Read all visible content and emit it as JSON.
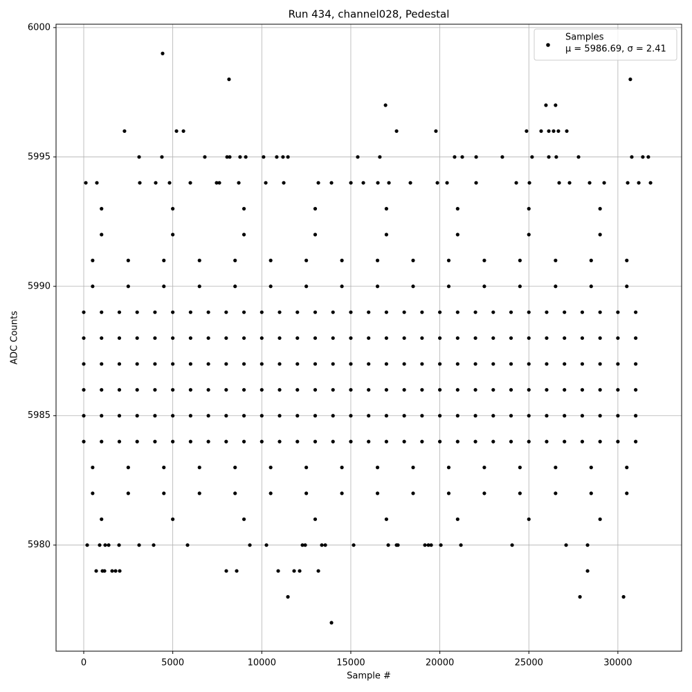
{
  "chart_data": {
    "type": "scatter",
    "title": "Run 434, channel028, Pedestal",
    "x_label": "Sample #",
    "y_label": "ADC Counts",
    "xlim": [
      -1555,
      33580
    ],
    "ylim": [
      5975.9,
      6000.13
    ],
    "xticks": [
      0,
      5000,
      10000,
      15000,
      20000,
      25000,
      30000
    ],
    "yticks": [
      5980,
      5985,
      5990,
      5995,
      6000
    ],
    "grid": true,
    "legend_position": "upper right",
    "legend_note": "μ = 5986.69, σ = 2.41",
    "series": [
      {
        "name": "Samples",
        "color": "#000000",
        "x": [
          0,
          1000,
          2000,
          3000,
          4000,
          5000,
          6000,
          7000,
          8000,
          9000,
          10000,
          11000,
          12000,
          13000,
          14000,
          15000,
          16000,
          17000,
          18000,
          19000,
          20000,
          21000,
          22000,
          23000,
          24000,
          25000,
          26000,
          27000,
          28000,
          29000,
          30000,
          31000,
          0,
          1000,
          2000,
          3000,
          4000,
          5000,
          6000,
          7000,
          8000,
          9000,
          10000,
          11000,
          12000,
          13000,
          14000,
          15000,
          16000,
          17000,
          18000,
          19000,
          20000,
          21000,
          22000,
          23000,
          24000,
          25000,
          26000,
          27000,
          28000,
          29000,
          30000,
          31000,
          0,
          1000,
          2000,
          3000,
          4000,
          5000,
          6000,
          7000,
          8000,
          9000,
          10000,
          11000,
          12000,
          13000,
          14000,
          15000,
          16000,
          17000,
          18000,
          19000,
          20000,
          21000,
          22000,
          23000,
          24000,
          25000,
          26000,
          27000,
          28000,
          29000,
          30000,
          31000,
          0,
          1000,
          2000,
          3000,
          4000,
          5000,
          6000,
          7000,
          8000,
          9000,
          10000,
          11000,
          12000,
          13000,
          14000,
          15000,
          16000,
          17000,
          18000,
          19000,
          20000,
          21000,
          22000,
          23000,
          24000,
          25000,
          26000,
          27000,
          28000,
          29000,
          30000,
          31000,
          0,
          1000,
          2000,
          3000,
          4000,
          5000,
          6000,
          7000,
          8000,
          9000,
          10000,
          11000,
          12000,
          13000,
          14000,
          15000,
          16000,
          17000,
          18000,
          19000,
          20000,
          21000,
          22000,
          23000,
          24000,
          25000,
          26000,
          27000,
          28000,
          29000,
          30000,
          31000,
          0,
          1000,
          2000,
          3000,
          4000,
          5000,
          6000,
          7000,
          8000,
          9000,
          10000,
          11000,
          12000,
          13000,
          14000,
          15000,
          16000,
          17000,
          18000,
          19000,
          20000,
          21000,
          22000,
          23000,
          24000,
          25000,
          26000,
          27000,
          28000,
          29000,
          30000,
          31000,
          500,
          2500,
          4500,
          6500,
          8500,
          10500,
          12500,
          14500,
          16500,
          18500,
          20500,
          22500,
          24500,
          26500,
          28500,
          30500,
          500,
          2500,
          4500,
          6500,
          8500,
          10500,
          12500,
          14500,
          16500,
          18500,
          20500,
          22500,
          24500,
          26500,
          28500,
          30500,
          500,
          2500,
          4500,
          6500,
          8500,
          10500,
          12500,
          14500,
          16500,
          18500,
          20500,
          22500,
          24500,
          26500,
          28500,
          30500,
          500,
          2500,
          4500,
          6500,
          8500,
          10500,
          12500,
          14500,
          16500,
          18500,
          20500,
          22500,
          24500,
          26500,
          28500,
          30500,
          1000,
          5000,
          9000,
          13000,
          17000,
          21000,
          25000,
          29000,
          1000,
          5000,
          9000,
          13000,
          17000,
          21000,
          25000,
          29000,
          1000,
          5000,
          9000,
          13000,
          17000,
          21000,
          25000,
          29000,
          4430,
          8160,
          30700,
          16950,
          25960,
          26500,
          2290,
          5210,
          5600,
          19780,
          24870,
          25690,
          26120,
          26390,
          26660,
          27130,
          17570,
          3110,
          4390,
          6800,
          8050,
          8200,
          8780,
          9100,
          10100,
          10840,
          11190,
          11470,
          15390,
          16630,
          20830,
          21260,
          22040,
          23510,
          25180,
          26120,
          26540,
          27790,
          30780,
          31400,
          31710,
          117,
          738,
          3148,
          4042,
          4820,
          5986,
          7463,
          7618,
          8707,
          10223,
          11233,
          13177,
          13915,
          15004,
          15703,
          16519,
          17141,
          18346,
          19862,
          20406,
          22038,
          24293,
          25032,
          26703,
          27286,
          28413,
          29230,
          30551,
          31173,
          31834,
          194,
          894,
          1205,
          1400,
          1983,
          3110,
          3926,
          5830,
          9329,
          10262,
          12283,
          12438,
          13371,
          13566,
          15159,
          17103,
          17569,
          17647,
          19163,
          19357,
          19513,
          20057,
          21184,
          24060,
          27092,
          28297,
          700,
          1050,
          1166,
          1594,
          1788,
          2021,
          8007,
          8590,
          10922,
          11816,
          12127,
          13177,
          28297,
          11467,
          27870,
          30319,
          13915
        ],
        "y": [
          5984,
          5984,
          5984,
          5984,
          5984,
          5984,
          5984,
          5984,
          5984,
          5984,
          5984,
          5984,
          5984,
          5984,
          5984,
          5984,
          5984,
          5984,
          5984,
          5984,
          5984,
          5984,
          5984,
          5984,
          5984,
          5984,
          5984,
          5984,
          5984,
          5984,
          5984,
          5984,
          5985,
          5985,
          5985,
          5985,
          5985,
          5985,
          5985,
          5985,
          5985,
          5985,
          5985,
          5985,
          5985,
          5985,
          5985,
          5985,
          5985,
          5985,
          5985,
          5985,
          5985,
          5985,
          5985,
          5985,
          5985,
          5985,
          5985,
          5985,
          5985,
          5985,
          5985,
          5985,
          5986,
          5986,
          5986,
          5986,
          5986,
          5986,
          5986,
          5986,
          5986,
          5986,
          5986,
          5986,
          5986,
          5986,
          5986,
          5986,
          5986,
          5986,
          5986,
          5986,
          5986,
          5986,
          5986,
          5986,
          5986,
          5986,
          5986,
          5986,
          5986,
          5986,
          5986,
          5986,
          5987,
          5987,
          5987,
          5987,
          5987,
          5987,
          5987,
          5987,
          5987,
          5987,
          5987,
          5987,
          5987,
          5987,
          5987,
          5987,
          5987,
          5987,
          5987,
          5987,
          5987,
          5987,
          5987,
          5987,
          5987,
          5987,
          5987,
          5987,
          5987,
          5987,
          5987,
          5987,
          5988,
          5988,
          5988,
          5988,
          5988,
          5988,
          5988,
          5988,
          5988,
          5988,
          5988,
          5988,
          5988,
          5988,
          5988,
          5988,
          5988,
          5988,
          5988,
          5988,
          5988,
          5988,
          5988,
          5988,
          5988,
          5988,
          5988,
          5988,
          5988,
          5988,
          5988,
          5988,
          5989,
          5989,
          5989,
          5989,
          5989,
          5989,
          5989,
          5989,
          5989,
          5989,
          5989,
          5989,
          5989,
          5989,
          5989,
          5989,
          5989,
          5989,
          5989,
          5989,
          5989,
          5989,
          5989,
          5989,
          5989,
          5989,
          5989,
          5989,
          5989,
          5989,
          5989,
          5989,
          5983,
          5983,
          5983,
          5983,
          5983,
          5983,
          5983,
          5983,
          5983,
          5983,
          5983,
          5983,
          5983,
          5983,
          5983,
          5983,
          5990,
          5990,
          5990,
          5990,
          5990,
          5990,
          5990,
          5990,
          5990,
          5990,
          5990,
          5990,
          5990,
          5990,
          5990,
          5990,
          5982,
          5982,
          5982,
          5982,
          5982,
          5982,
          5982,
          5982,
          5982,
          5982,
          5982,
          5982,
          5982,
          5982,
          5982,
          5982,
          5991,
          5991,
          5991,
          5991,
          5991,
          5991,
          5991,
          5991,
          5991,
          5991,
          5991,
          5991,
          5991,
          5991,
          5991,
          5991,
          5981,
          5981,
          5981,
          5981,
          5981,
          5981,
          5981,
          5981,
          5992,
          5992,
          5992,
          5992,
          5992,
          5992,
          5992,
          5992,
          5993,
          5993,
          5993,
          5993,
          5993,
          5993,
          5993,
          5993,
          5999,
          5998,
          5998,
          5997,
          5997,
          5997,
          5996,
          5996,
          5996,
          5996,
          5996,
          5996,
          5996,
          5996,
          5996,
          5996,
          5996,
          5995,
          5995,
          5995,
          5995,
          5995,
          5995,
          5995,
          5995,
          5995,
          5995,
          5995,
          5995,
          5995,
          5995,
          5995,
          5995,
          5995,
          5995,
          5995,
          5995,
          5995,
          5995,
          5995,
          5995,
          5994,
          5994,
          5994,
          5994,
          5994,
          5994,
          5994,
          5994,
          5994,
          5994,
          5994,
          5994,
          5994,
          5994,
          5994,
          5994,
          5994,
          5994,
          5994,
          5994,
          5994,
          5994,
          5994,
          5994,
          5994,
          5994,
          5994,
          5994,
          5994,
          5994,
          5980,
          5980,
          5980,
          5980,
          5980,
          5980,
          5980,
          5980,
          5980,
          5980,
          5980,
          5980,
          5980,
          5980,
          5980,
          5980,
          5980,
          5980,
          5980,
          5980,
          5980,
          5980,
          5980,
          5980,
          5980,
          5980,
          5979,
          5979,
          5979,
          5979,
          5979,
          5979,
          5979,
          5979,
          5979,
          5979,
          5979,
          5979,
          5979,
          5978,
          5978,
          5978,
          5977
        ]
      }
    ]
  }
}
